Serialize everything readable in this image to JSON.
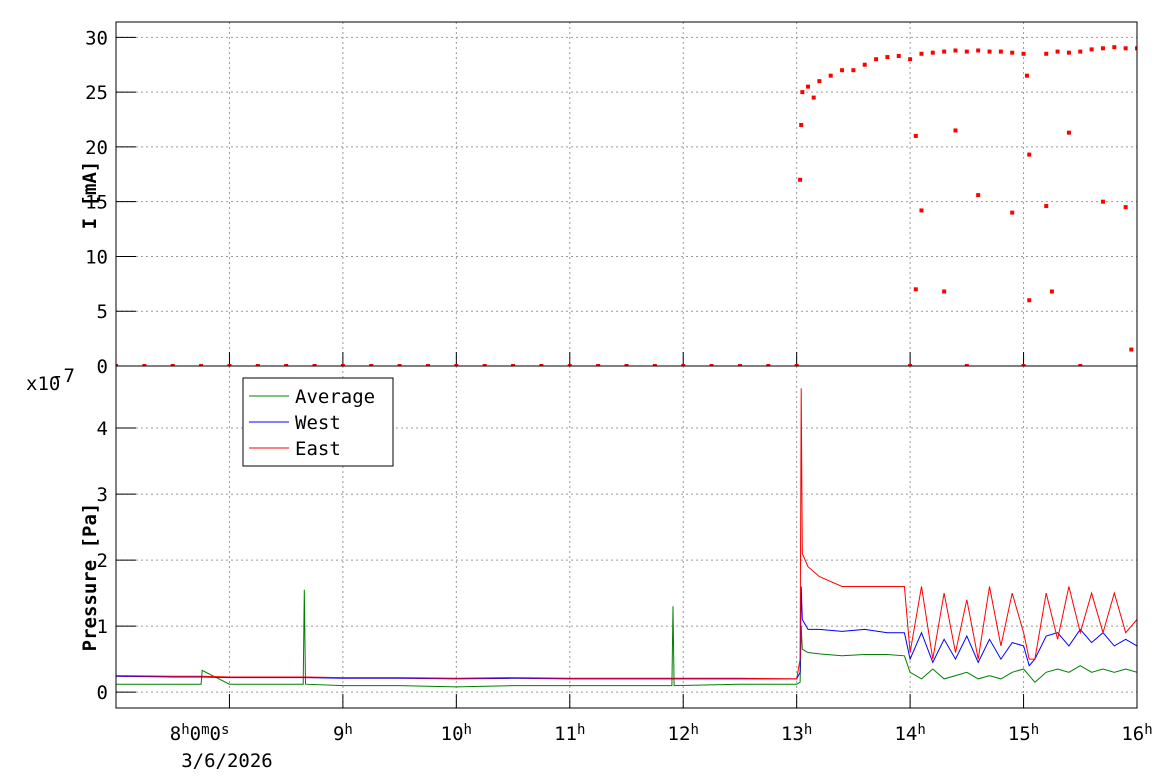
{
  "chart_data": [
    {
      "type": "scatter",
      "ylabel": "I [mA]",
      "xlim": [
        7,
        16
      ],
      "xticks": [
        8,
        9,
        10,
        11,
        12,
        13,
        14,
        15,
        16
      ],
      "ylim": [
        0,
        31.4
      ],
      "yticks": [
        0,
        5,
        10,
        15,
        20,
        25,
        30
      ],
      "grid": true,
      "series": [
        {
          "color": "#ff0000",
          "x": [
            7,
            7.25,
            7.5,
            7.75,
            8,
            8.25,
            8.5,
            8.75,
            9,
            9.25,
            9.5,
            9.75,
            10,
            10.25,
            10.5,
            10.75,
            11,
            11.25,
            11.5,
            11.75,
            12,
            12.25,
            12.5,
            12.75,
            13,
            13.03,
            13.04,
            13.05,
            13.1,
            13.15,
            13.2,
            13.3,
            13.4,
            13.5,
            13.6,
            13.7,
            13.8,
            13.9,
            14.0,
            14.1,
            14.2,
            14.3,
            14.4,
            14.5,
            14.6,
            14.7,
            14.8,
            14.9,
            15.0,
            15.03,
            15.2,
            15.3,
            15.4,
            15.5,
            15.6,
            15.7,
            15.8,
            15.9,
            16.0,
            14.05,
            14.1,
            14.05,
            14.3,
            14.4,
            14.6,
            14.9,
            15.05,
            15.05,
            15.2,
            15.25,
            15.4,
            15.7,
            15.9,
            15.95,
            14.0,
            14.5,
            15.0,
            15.5
          ],
          "values": [
            0,
            0,
            0,
            0,
            0,
            0,
            0,
            0,
            0,
            0,
            0,
            0,
            0,
            0,
            0,
            0,
            0,
            0,
            0,
            0,
            0,
            0,
            0,
            0,
            0,
            17,
            22,
            25,
            25.5,
            24.5,
            26,
            26.5,
            27,
            27,
            27.5,
            28,
            28.2,
            28.3,
            28,
            28.5,
            28.6,
            28.7,
            28.8,
            28.7,
            28.8,
            28.7,
            28.7,
            28.6,
            28.5,
            26.5,
            28.5,
            28.7,
            28.6,
            28.7,
            28.9,
            29,
            29.1,
            29,
            29,
            21,
            14.2,
            7,
            6.8,
            21.5,
            15.6,
            14,
            19.3,
            6,
            14.6,
            6.8,
            21.3,
            15,
            14.5,
            1.5,
            0,
            0,
            0,
            0
          ]
        }
      ]
    },
    {
      "type": "line",
      "ylabel": "Pressure [Pa]",
      "y_exponent_base": "x10",
      "y_exponent": "-7",
      "xlim": [
        7,
        16
      ],
      "xticks": [
        {
          "value": 8,
          "label": "8h0m0s"
        },
        {
          "value": 9,
          "label": "9h"
        },
        {
          "value": 10,
          "label": "10h"
        },
        {
          "value": 11,
          "label": "11h"
        },
        {
          "value": 12,
          "label": "12h"
        },
        {
          "value": 13,
          "label": "13h"
        },
        {
          "value": 14,
          "label": "14h"
        },
        {
          "value": 15,
          "label": "15h"
        },
        {
          "value": 16,
          "label": "16h"
        }
      ],
      "x_date": "3/6/2026",
      "ylim": [
        -0.24,
        4.94
      ],
      "yticks": [
        0,
        1,
        2,
        3,
        4
      ],
      "grid": true,
      "legend": "top-left",
      "x": [
        7.0,
        7.5,
        7.75,
        7.76,
        8.0,
        8.5,
        8.65,
        8.66,
        8.67,
        9.0,
        9.5,
        10.0,
        10.5,
        11.0,
        11.5,
        11.9,
        11.91,
        11.92,
        12.5,
        13.0,
        13.03,
        13.04,
        13.05,
        13.1,
        13.2,
        13.4,
        13.6,
        13.8,
        13.95,
        14.0,
        14.1,
        14.2,
        14.3,
        14.4,
        14.5,
        14.6,
        14.7,
        14.8,
        14.9,
        15.0,
        15.05,
        15.1,
        15.2,
        15.3,
        15.4,
        15.5,
        15.6,
        15.7,
        15.8,
        15.9,
        16.0
      ],
      "series": [
        {
          "name": "Average",
          "color": "#008000",
          "values": [
            0.12,
            0.12,
            0.12,
            0.33,
            0.12,
            0.12,
            0.12,
            1.55,
            0.12,
            0.1,
            0.1,
            0.08,
            0.1,
            0.1,
            0.1,
            0.1,
            1.3,
            0.1,
            0.12,
            0.12,
            0.15,
            1.0,
            0.65,
            0.6,
            0.58,
            0.55,
            0.57,
            0.57,
            0.55,
            0.3,
            0.2,
            0.35,
            0.2,
            0.25,
            0.3,
            0.2,
            0.25,
            0.2,
            0.3,
            0.35,
            0.25,
            0.15,
            0.3,
            0.35,
            0.3,
            0.4,
            0.3,
            0.35,
            0.3,
            0.35,
            0.3
          ]
        },
        {
          "name": "West",
          "color": "#0000ff",
          "values": [
            0.24,
            0.23,
            0.23,
            0.23,
            0.22,
            0.22,
            0.22,
            0.22,
            0.22,
            0.21,
            0.21,
            0.2,
            0.21,
            0.2,
            0.2,
            0.2,
            0.2,
            0.2,
            0.2,
            0.2,
            0.3,
            1.6,
            1.1,
            0.95,
            0.95,
            0.92,
            0.95,
            0.9,
            0.9,
            0.5,
            0.9,
            0.45,
            0.8,
            0.5,
            0.85,
            0.45,
            0.8,
            0.5,
            0.75,
            0.7,
            0.4,
            0.5,
            0.85,
            0.9,
            0.7,
            0.95,
            0.75,
            0.9,
            0.7,
            0.8,
            0.7
          ]
        },
        {
          "name": "East",
          "color": "#ff0000",
          "values": [
            0.25,
            0.24,
            0.24,
            0.24,
            0.23,
            0.23,
            0.23,
            0.23,
            0.23,
            0.22,
            0.22,
            0.21,
            0.22,
            0.21,
            0.21,
            0.21,
            0.21,
            0.21,
            0.21,
            0.2,
            0.5,
            4.6,
            2.1,
            1.9,
            1.75,
            1.6,
            1.6,
            1.6,
            1.6,
            0.6,
            1.6,
            0.5,
            1.5,
            0.6,
            1.4,
            0.5,
            1.6,
            0.7,
            1.5,
            0.9,
            0.5,
            0.5,
            1.5,
            0.8,
            1.6,
            0.9,
            1.5,
            0.9,
            1.5,
            0.9,
            1.1
          ]
        }
      ]
    }
  ]
}
